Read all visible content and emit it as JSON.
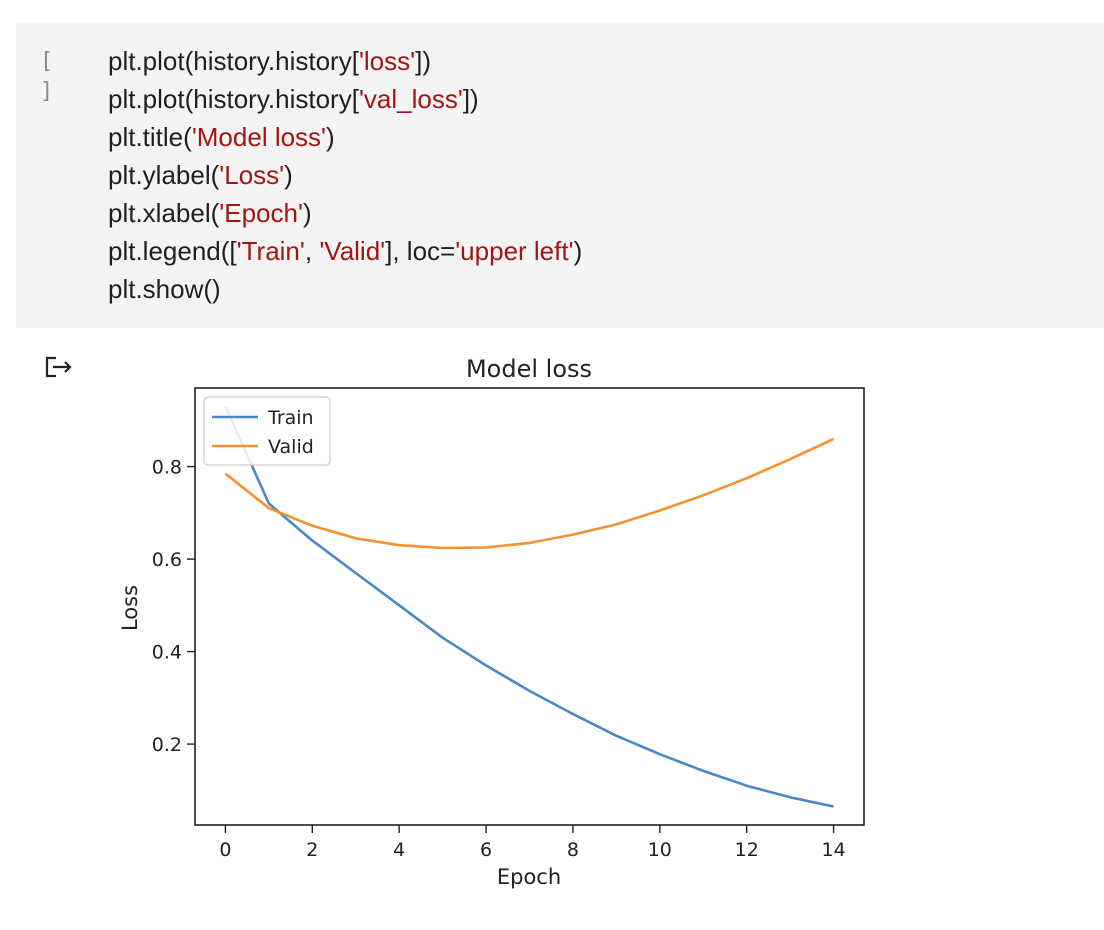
{
  "cell": {
    "run_button_label": "[ ]",
    "code_lines": [
      [
        {
          "t": "plt.plot(history.history["
        },
        {
          "t": "'loss'",
          "s": 1
        },
        {
          "t": "])"
        }
      ],
      [
        {
          "t": "plt.plot(history.history["
        },
        {
          "t": "'val_loss'",
          "s": 1
        },
        {
          "t": "])"
        }
      ],
      [
        {
          "t": "plt.title("
        },
        {
          "t": "'Model loss'",
          "s": 1
        },
        {
          "t": ")"
        }
      ],
      [
        {
          "t": "plt.ylabel("
        },
        {
          "t": "'Loss'",
          "s": 1
        },
        {
          "t": ")"
        }
      ],
      [
        {
          "t": "plt.xlabel("
        },
        {
          "t": "'Epoch'",
          "s": 1
        },
        {
          "t": ")"
        }
      ],
      [
        {
          "t": "plt.legend(["
        },
        {
          "t": "'Train'",
          "s": 1
        },
        {
          "t": ", "
        },
        {
          "t": "'Valid'",
          "s": 1
        },
        {
          "t": "], loc="
        },
        {
          "t": "'upper left'",
          "s": 1
        },
        {
          "t": ")"
        }
      ],
      [
        {
          "t": "plt.show()"
        }
      ]
    ]
  },
  "output": {
    "icon": "output-redirect-icon"
  },
  "colors": {
    "code_string": "#a31515",
    "train": "#4a88c7",
    "valid": "#f5922f"
  },
  "chart_data": {
    "type": "line",
    "title": "Model loss",
    "xlabel": "Epoch",
    "ylabel": "Loss",
    "x": [
      0,
      1,
      2,
      3,
      4,
      5,
      6,
      7,
      8,
      9,
      10,
      11,
      12,
      13,
      14
    ],
    "xticks": [
      0,
      2,
      4,
      6,
      8,
      10,
      12,
      14
    ],
    "yticks": [
      0.2,
      0.4,
      0.6,
      0.8
    ],
    "xlim": [
      -0.7,
      14.7
    ],
    "ylim": [
      0.025,
      0.97
    ],
    "grid": false,
    "legend_loc": "upper left",
    "series": [
      {
        "name": "Train",
        "color": "#4a88c7",
        "values": [
          0.93,
          0.72,
          0.64,
          0.57,
          0.5,
          0.43,
          0.37,
          0.315,
          0.265,
          0.218,
          0.178,
          0.142,
          0.11,
          0.085,
          0.065
        ]
      },
      {
        "name": "Valid",
        "color": "#f5922f",
        "values": [
          0.785,
          0.71,
          0.672,
          0.645,
          0.63,
          0.624,
          0.625,
          0.635,
          0.653,
          0.675,
          0.705,
          0.738,
          0.775,
          0.816,
          0.86
        ]
      }
    ]
  }
}
